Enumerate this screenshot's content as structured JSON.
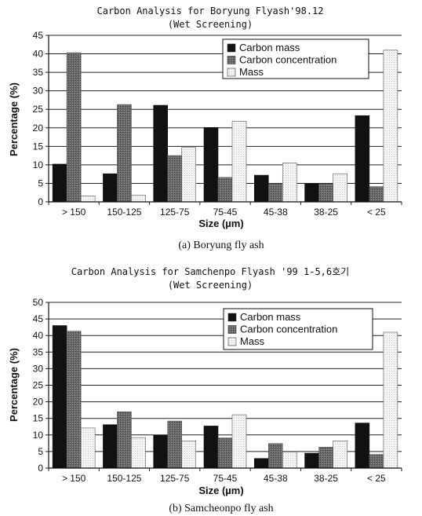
{
  "chart_data": [
    {
      "type": "bar",
      "title": "Carbon Analysis for Boryung Flyash'98.12",
      "subtitle": "(Wet Screening)",
      "caption": "(a) Boryung fly ash",
      "xlabel": "Size (µm)",
      "ylabel": "Percentage (%)",
      "ylim": [
        0,
        45
      ],
      "ytick_step": 5,
      "grid": true,
      "legend_position": "top-right",
      "categories": [
        "> 150",
        "150-125",
        "125-75",
        "75-45",
        "45-38",
        "38-25",
        "< 25"
      ],
      "series": [
        {
          "name": "Carbon mass",
          "color": "#111111",
          "values": [
            10.2,
            7.6,
            26.1,
            20.1,
            7.2,
            4.9,
            23.3
          ]
        },
        {
          "name": "Carbon concentration",
          "color": "#5a5a5a",
          "values": [
            40.3,
            26.3,
            12.5,
            6.6,
            4.9,
            4.8,
            4.1
          ]
        },
        {
          "name": "Mass",
          "color": "#e8e8e8",
          "values": [
            1.6,
            1.8,
            14.7,
            21.8,
            10.5,
            7.6,
            41.0
          ]
        }
      ]
    },
    {
      "type": "bar",
      "title": "Carbon Analysis for Samchenpo Flyash '99 1-5,6호기",
      "subtitle": "(Wet Screening)",
      "caption": "(b) Samcheonpo fly ash",
      "xlabel": "Size (µm)",
      "ylabel": "Percentage (%)",
      "ylim": [
        0,
        50
      ],
      "ytick_step": 5,
      "grid": true,
      "legend_position": "top-right",
      "categories": [
        "> 150",
        "150-125",
        "125-75",
        "75-45",
        "45-38",
        "38-25",
        "< 25"
      ],
      "series": [
        {
          "name": "Carbon mass",
          "color": "#111111",
          "values": [
            43.0,
            13.1,
            9.9,
            12.7,
            2.9,
            4.5,
            13.6
          ]
        },
        {
          "name": "Carbon concentration",
          "color": "#5a5a5a",
          "values": [
            41.3,
            17.0,
            14.2,
            9.1,
            7.4,
            6.3,
            4.1
          ]
        },
        {
          "name": "Mass",
          "color": "#e8e8e8",
          "values": [
            12.1,
            9.2,
            8.2,
            16.1,
            4.9,
            8.2,
            41.0
          ]
        }
      ]
    }
  ]
}
